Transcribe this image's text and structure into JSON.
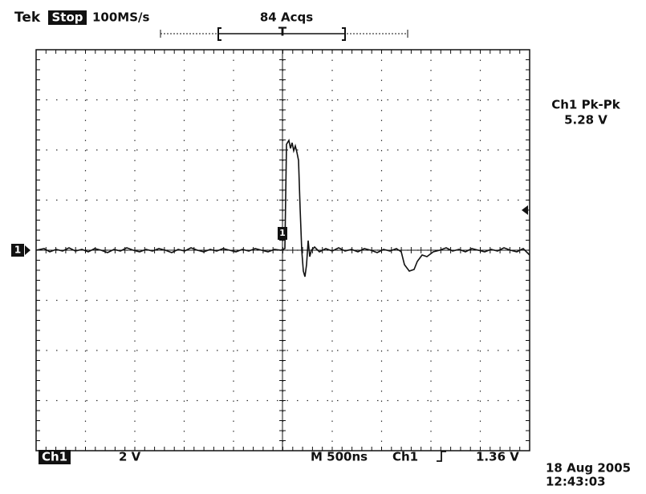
{
  "header": {
    "brand": "Tek",
    "status": "Stop",
    "sample_rate": "100MS/s",
    "acquisitions": "84 Acqs",
    "trigger_marker": "T"
  },
  "measurement": {
    "label": "Ch1 Pk-Pk",
    "value": "5.28 V"
  },
  "markers": {
    "ground": "1",
    "trace": "1"
  },
  "footer": {
    "channel": "Ch1",
    "volts_per_div": "2 V",
    "timebase": "M 500ns",
    "trigger_source": "Ch1",
    "trigger_level": "1.36 V"
  },
  "timestamp": {
    "date": "18 Aug 2005",
    "time": "12:43:03"
  }
}
